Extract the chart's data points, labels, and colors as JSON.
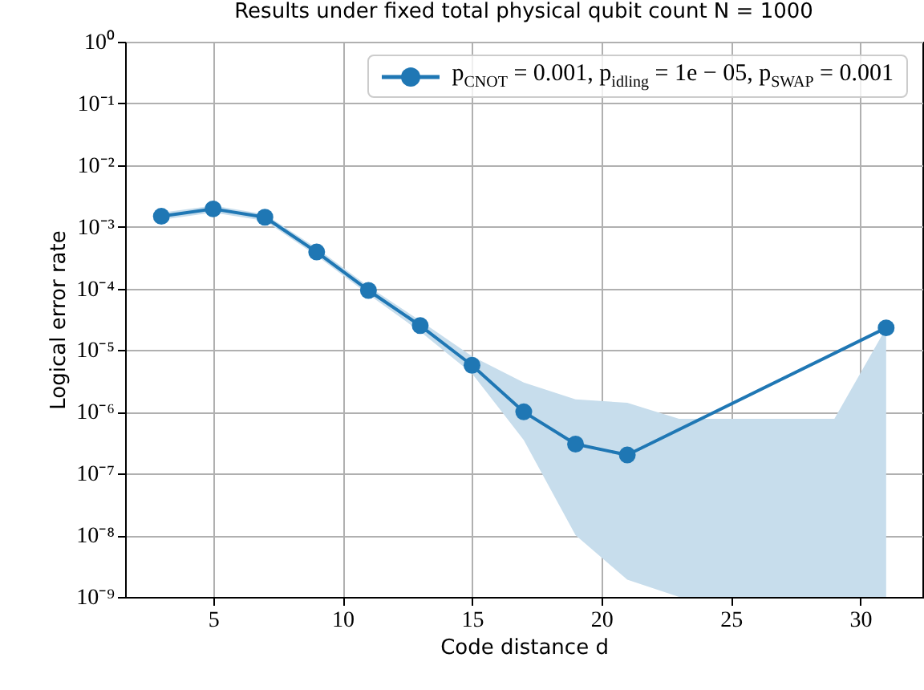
{
  "chart_data": {
    "type": "line",
    "title": "Results under fixed total physical qubit count N = 1000",
    "xlabel": "Code distance d",
    "ylabel": "Logical error rate",
    "x": [
      3,
      5,
      7,
      9,
      11,
      13,
      15,
      17,
      19,
      21,
      23,
      25,
      27,
      29,
      31
    ],
    "series": [
      {
        "name": "p$_{CNOT}$ = 0.001, p$_{idling}$ = 1e − 05, p$_{SWAP}$ = 0.001",
        "color": "#1f77b4",
        "values": [
          0.00148,
          0.00195,
          0.00143,
          0.00039,
          9.3e-05,
          2.5e-05,
          5.7e-06,
          1e-06,
          3e-07,
          2e-07,
          null,
          null,
          null,
          null,
          2.3e-05
        ],
        "lower": [
          0.0013,
          0.0017,
          0.00125,
          0.00034,
          8e-05,
          2e-05,
          4.2e-06,
          3.5e-07,
          1e-08,
          1.9e-09,
          1e-09,
          1e-09,
          1e-09,
          1e-09,
          1e-09
        ],
        "upper": [
          0.0017,
          0.0022,
          0.0016,
          0.00045,
          0.000108,
          3e-05,
          8e-06,
          3e-06,
          1.6e-06,
          1.4e-06,
          7.7e-07,
          7.7e-07,
          7.7e-07,
          7.7e-07,
          2.3e-05
        ]
      }
    ],
    "xlim": [
      1.6,
      32.4
    ],
    "xticks": [
      5,
      10,
      15,
      20,
      25,
      30
    ],
    "ylim": [
      1e-09,
      1
    ],
    "yticks": [
      {
        "value": 1e-09,
        "label": "10⁻⁹"
      },
      {
        "value": 1e-08,
        "label": "10⁻⁸"
      },
      {
        "value": 1e-07,
        "label": "10⁻⁷"
      },
      {
        "value": 1e-06,
        "label": "10⁻⁶"
      },
      {
        "value": 1e-05,
        "label": "10⁻⁵"
      },
      {
        "value": 0.0001,
        "label": "10⁻⁴"
      },
      {
        "value": 0.001,
        "label": "10⁻³"
      },
      {
        "value": 0.01,
        "label": "10⁻²"
      },
      {
        "value": 0.1,
        "label": "10⁻¹"
      },
      {
        "value": 1,
        "label": "10⁰"
      }
    ],
    "log": true,
    "grid": true,
    "legend": "top right",
    "marker": "circle"
  }
}
